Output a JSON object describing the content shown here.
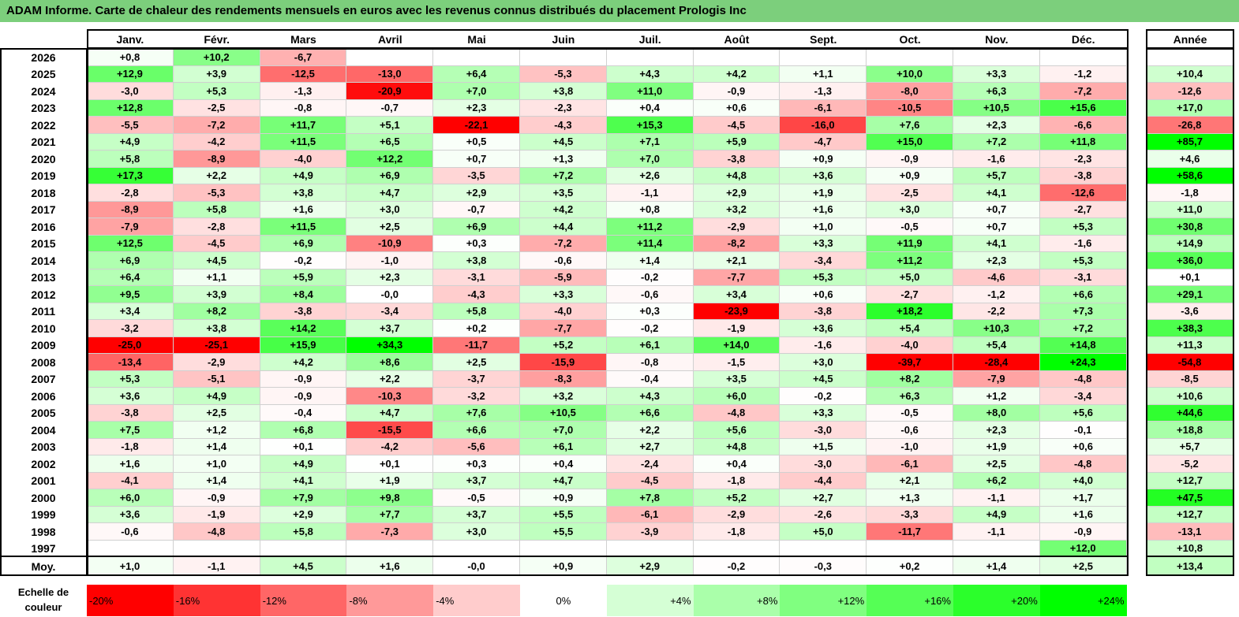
{
  "title": "ADAM Informe. Carte de chaleur des rendements mensuels en euros avec les revenus connus distribués du placement Prologis Inc",
  "chart_data": {
    "type": "heatmap",
    "months": [
      "Janv.",
      "Févr.",
      "Mars",
      "Avril",
      "Mai",
      "Juin",
      "Juil.",
      "Août",
      "Sept.",
      "Oct.",
      "Nov.",
      "Déc."
    ],
    "annual_header": "Année",
    "rows": [
      {
        "year": "2026",
        "values": [
          "+0,8",
          "+10,2",
          "-6,7",
          "",
          "",
          "",
          "",
          "",
          "",
          "",
          "",
          ""
        ],
        "annual": ""
      },
      {
        "year": "2025",
        "values": [
          "+12,9",
          "+3,9",
          "-12,5",
          "-13,0",
          "+6,4",
          "-5,3",
          "+4,3",
          "+4,2",
          "+1,1",
          "+10,0",
          "+3,3",
          "-1,2"
        ],
        "annual": "+10,4"
      },
      {
        "year": "2024",
        "values": [
          "-3,0",
          "+5,3",
          "-1,3",
          "-20,9",
          "+7,0",
          "+3,8",
          "+11,0",
          "-0,9",
          "-1,3",
          "-8,0",
          "+6,3",
          "-7,2"
        ],
        "annual": "-12,6"
      },
      {
        "year": "2023",
        "values": [
          "+12,8",
          "-2,5",
          "-0,8",
          "-0,7",
          "+2,3",
          "-2,3",
          "+0,4",
          "+0,6",
          "-6,1",
          "-10,5",
          "+10,5",
          "+15,6"
        ],
        "annual": "+17,0"
      },
      {
        "year": "2022",
        "values": [
          "-5,5",
          "-7,2",
          "+11,7",
          "+5,1",
          "-22,1",
          "-4,3",
          "+15,3",
          "-4,5",
          "-16,0",
          "+7,6",
          "+2,3",
          "-6,6"
        ],
        "annual": "-26,8"
      },
      {
        "year": "2021",
        "values": [
          "+4,9",
          "-4,2",
          "+11,5",
          "+6,5",
          "+0,5",
          "+4,5",
          "+7,1",
          "+5,9",
          "-4,7",
          "+15,0",
          "+7,2",
          "+11,8"
        ],
        "annual": "+85,7"
      },
      {
        "year": "2020",
        "values": [
          "+5,8",
          "-8,9",
          "-4,0",
          "+12,2",
          "+0,7",
          "+1,3",
          "+7,0",
          "-3,8",
          "+0,9",
          "-0,9",
          "-1,6",
          "-2,3"
        ],
        "annual": "+4,6"
      },
      {
        "year": "2019",
        "values": [
          "+17,3",
          "+2,2",
          "+4,9",
          "+6,9",
          "-3,5",
          "+7,2",
          "+2,6",
          "+4,8",
          "+3,6",
          "+0,9",
          "+5,7",
          "-3,8"
        ],
        "annual": "+58,6"
      },
      {
        "year": "2018",
        "values": [
          "-2,8",
          "-5,3",
          "+3,8",
          "+4,7",
          "+2,9",
          "+3,5",
          "-1,1",
          "+2,9",
          "+1,9",
          "-2,5",
          "+4,1",
          "-12,6"
        ],
        "annual": "-1,8"
      },
      {
        "year": "2017",
        "values": [
          "-8,9",
          "+5,8",
          "+1,6",
          "+3,0",
          "-0,7",
          "+4,2",
          "+0,8",
          "+3,2",
          "+1,6",
          "+3,0",
          "+0,7",
          "-2,7"
        ],
        "annual": "+11,0"
      },
      {
        "year": "2016",
        "values": [
          "-7,9",
          "-2,8",
          "+11,5",
          "+2,5",
          "+6,9",
          "+4,4",
          "+11,2",
          "-2,9",
          "+1,0",
          "-0,5",
          "+0,7",
          "+5,3"
        ],
        "annual": "+30,8"
      },
      {
        "year": "2015",
        "values": [
          "+12,5",
          "-4,5",
          "+6,9",
          "-10,9",
          "+0,3",
          "-7,2",
          "+11,4",
          "-8,2",
          "+3,3",
          "+11,9",
          "+4,1",
          "-1,6"
        ],
        "annual": "+14,9"
      },
      {
        "year": "2014",
        "values": [
          "+6,9",
          "+4,5",
          "-0,2",
          "-1,0",
          "+3,8",
          "-0,6",
          "+1,4",
          "+2,1",
          "-3,4",
          "+11,2",
          "+2,3",
          "+5,3"
        ],
        "annual": "+36,0"
      },
      {
        "year": "2013",
        "values": [
          "+6,4",
          "+1,1",
          "+5,9",
          "+2,3",
          "-3,1",
          "-5,9",
          "-0,2",
          "-7,7",
          "+5,3",
          "+5,0",
          "-4,6",
          "-3,1"
        ],
        "annual": "+0,1"
      },
      {
        "year": "2012",
        "values": [
          "+9,5",
          "+3,9",
          "+8,4",
          "-0,0",
          "-4,3",
          "+3,3",
          "-0,6",
          "+3,4",
          "+0,6",
          "-2,7",
          "-1,2",
          "+6,6"
        ],
        "annual": "+29,1"
      },
      {
        "year": "2011",
        "values": [
          "+3,4",
          "+8,2",
          "-3,8",
          "-3,4",
          "+5,8",
          "-4,0",
          "+0,3",
          "-23,9",
          "-3,8",
          "+18,2",
          "-2,2",
          "+7,3"
        ],
        "annual": "-3,6"
      },
      {
        "year": "2010",
        "values": [
          "-3,2",
          "+3,8",
          "+14,2",
          "+3,7",
          "+0,2",
          "-7,7",
          "-0,2",
          "-1,9",
          "+3,6",
          "+5,4",
          "+10,3",
          "+7,2"
        ],
        "annual": "+38,3"
      },
      {
        "year": "2009",
        "values": [
          "-25,0",
          "-25,1",
          "+15,9",
          "+34,3",
          "-11,7",
          "+5,2",
          "+6,1",
          "+14,0",
          "-1,6",
          "-4,0",
          "+5,4",
          "+14,8"
        ],
        "annual": "+11,3"
      },
      {
        "year": "2008",
        "values": [
          "-13,4",
          "-2,9",
          "+4,2",
          "+8,6",
          "+2,5",
          "-15,9",
          "-0,8",
          "-1,5",
          "+3,0",
          "-39,7",
          "-28,4",
          "+24,3"
        ],
        "annual": "-54,8"
      },
      {
        "year": "2007",
        "values": [
          "+5,3",
          "-5,1",
          "-0,9",
          "+2,2",
          "-3,7",
          "-8,3",
          "-0,4",
          "+3,5",
          "+4,5",
          "+8,2",
          "-7,9",
          "-4,8"
        ],
        "annual": "-8,5"
      },
      {
        "year": "2006",
        "values": [
          "+3,6",
          "+4,9",
          "-0,9",
          "-10,3",
          "-3,2",
          "+3,2",
          "+4,3",
          "+6,0",
          "-0,2",
          "+6,3",
          "+1,2",
          "-3,4"
        ],
        "annual": "+10,6"
      },
      {
        "year": "2005",
        "values": [
          "-3,8",
          "+2,5",
          "-0,4",
          "+4,7",
          "+7,6",
          "+10,5",
          "+6,6",
          "-4,8",
          "+3,3",
          "-0,5",
          "+8,0",
          "+5,6"
        ],
        "annual": "+44,6"
      },
      {
        "year": "2004",
        "values": [
          "+7,5",
          "+1,2",
          "+6,8",
          "-15,5",
          "+6,6",
          "+7,0",
          "+2,2",
          "+5,6",
          "-3,0",
          "-0,6",
          "+2,3",
          "-0,1"
        ],
        "annual": "+18,8"
      },
      {
        "year": "2003",
        "values": [
          "-1,8",
          "+1,4",
          "+0,1",
          "-4,2",
          "-5,6",
          "+6,1",
          "+2,7",
          "+4,8",
          "+1,5",
          "-1,0",
          "+1,9",
          "+0,6"
        ],
        "annual": "+5,7"
      },
      {
        "year": "2002",
        "values": [
          "+1,6",
          "+1,0",
          "+4,9",
          "+0,1",
          "+0,3",
          "+0,4",
          "-2,4",
          "+0,4",
          "-3,0",
          "-6,1",
          "+2,5",
          "-4,8"
        ],
        "annual": "-5,2"
      },
      {
        "year": "2001",
        "values": [
          "-4,1",
          "+1,4",
          "+4,1",
          "+1,9",
          "+3,7",
          "+4,7",
          "-4,5",
          "-1,8",
          "-4,4",
          "+2,1",
          "+6,2",
          "+4,0"
        ],
        "annual": "+12,7"
      },
      {
        "year": "2000",
        "values": [
          "+6,0",
          "-0,9",
          "+7,9",
          "+9,8",
          "-0,5",
          "+0,9",
          "+7,8",
          "+5,2",
          "+2,7",
          "+1,3",
          "-1,1",
          "+1,7"
        ],
        "annual": "+47,5"
      },
      {
        "year": "1999",
        "values": [
          "+3,6",
          "-1,9",
          "+2,9",
          "+7,7",
          "+3,7",
          "+5,5",
          "-6,1",
          "-2,9",
          "-2,6",
          "-3,3",
          "+4,9",
          "+1,6"
        ],
        "annual": "+12,7"
      },
      {
        "year": "1998",
        "values": [
          "-0,6",
          "-4,8",
          "+5,8",
          "-7,3",
          "+3,0",
          "+5,5",
          "-3,9",
          "-1,8",
          "+5,0",
          "-11,7",
          "-1,1",
          "-0,9"
        ],
        "annual": "-13,1"
      },
      {
        "year": "1997",
        "values": [
          "",
          "",
          "",
          "",
          "",
          "",
          "",
          "",
          "",
          "",
          "",
          "+12,0"
        ],
        "annual": "+10,8"
      }
    ],
    "average": {
      "label": "Moy.",
      "values": [
        "+1,0",
        "-1,1",
        "+4,5",
        "+1,6",
        "-0,0",
        "+0,9",
        "+2,9",
        "-0,2",
        "-0,3",
        "+0,2",
        "+1,4",
        "+2,5"
      ],
      "annual": "+13,4"
    },
    "color_scale": {
      "label_line1": "Echelle de",
      "label_line2": "couleur",
      "stops": [
        "-20%",
        "-16%",
        "-12%",
        "-8%",
        "-4%",
        "0%",
        "+4%",
        "+8%",
        "+12%",
        "+16%",
        "+20%",
        "+24%"
      ],
      "negative_color": "#ff0000",
      "zero_color": "#ffffff",
      "positive_color": "#00ff00"
    }
  }
}
